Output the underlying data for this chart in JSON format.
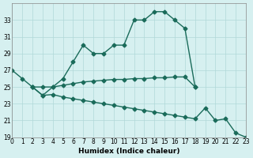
{
  "xlabel": "Humidex (Indice chaleur)",
  "background_color": "#d6f0f0",
  "line_color": "#1a6b5a",
  "grid_color": "#b0d8d8",
  "series_main_x": [
    0,
    1,
    2,
    3,
    4,
    5,
    6,
    7,
    8,
    9,
    10,
    11,
    12,
    13,
    14,
    15,
    16,
    17,
    18
  ],
  "series_main_y": [
    27,
    26,
    25,
    25,
    25,
    26,
    28,
    30,
    29,
    29,
    30,
    30,
    33,
    33,
    34,
    34,
    33,
    32,
    25
  ],
  "series_flat_x": [
    2,
    3,
    4,
    5,
    6,
    7,
    8,
    9,
    10,
    11,
    12,
    13,
    14,
    15,
    16,
    17,
    18
  ],
  "series_flat_y": [
    25,
    24,
    25,
    25.2,
    25.4,
    25.6,
    25.7,
    25.8,
    25.9,
    25.9,
    26.0,
    26.0,
    26.1,
    26.1,
    26.2,
    26.2,
    25.0
  ],
  "series_low_x": [
    2,
    3,
    4,
    5,
    6,
    7,
    8,
    9,
    10,
    11,
    12,
    13,
    14,
    15,
    16,
    17,
    18,
    19,
    20,
    21,
    22,
    23
  ],
  "series_low_y": [
    25,
    24,
    24.1,
    23.8,
    23.6,
    23.4,
    23.2,
    23.0,
    22.8,
    22.6,
    22.4,
    22.2,
    22.0,
    21.8,
    21.6,
    21.4,
    21.2,
    22.5,
    21.0,
    21.2,
    19.5,
    19.0
  ],
  "ylim": [
    19,
    35
  ],
  "xlim": [
    0,
    23
  ],
  "yticks": [
    19,
    21,
    23,
    25,
    27,
    29,
    31,
    33
  ],
  "xticks": [
    0,
    1,
    2,
    3,
    4,
    5,
    6,
    7,
    8,
    9,
    10,
    11,
    12,
    13,
    14,
    15,
    16,
    17,
    18,
    19,
    20,
    21,
    22,
    23
  ]
}
